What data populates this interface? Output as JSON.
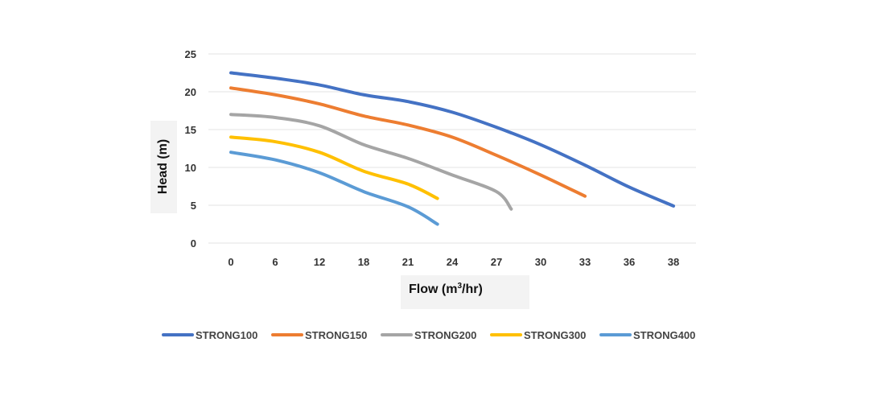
{
  "chart_data": {
    "type": "line",
    "xlabel": "Flow (m",
    "xlabel_sup": "3",
    "xlabel_tail": "/hr)",
    "ylabel": "Head (m)",
    "x_ticks": [
      "0",
      "6",
      "12",
      "18",
      "21",
      "24",
      "27",
      "30",
      "33",
      "36",
      "38"
    ],
    "y_ticks": [
      "0",
      "5",
      "10",
      "15",
      "20",
      "25"
    ],
    "ylim": [
      0,
      25
    ],
    "grid": "horizontal",
    "legend_position": "bottom",
    "series": [
      {
        "name": "STRONG100",
        "color": "#4472c4",
        "points": [
          [
            0,
            22.5
          ],
          [
            6,
            21.8
          ],
          [
            12,
            20.9
          ],
          [
            18,
            19.6
          ],
          [
            21,
            18.7
          ],
          [
            24,
            17.3
          ],
          [
            27,
            15.3
          ],
          [
            30,
            13.0
          ],
          [
            33,
            10.3
          ],
          [
            36,
            7.4
          ],
          [
            38,
            4.9
          ]
        ]
      },
      {
        "name": "STRONG150",
        "color": "#ed7d31",
        "points": [
          [
            0,
            20.5
          ],
          [
            6,
            19.6
          ],
          [
            12,
            18.4
          ],
          [
            18,
            16.8
          ],
          [
            21,
            15.6
          ],
          [
            24,
            14.0
          ],
          [
            27,
            11.6
          ],
          [
            30,
            9.0
          ],
          [
            33,
            6.2
          ]
        ]
      },
      {
        "name": "STRONG200",
        "color": "#a5a5a5",
        "points": [
          [
            0,
            17.0
          ],
          [
            6,
            16.6
          ],
          [
            12,
            15.5
          ],
          [
            18,
            13.0
          ],
          [
            21,
            11.2
          ],
          [
            24,
            9.0
          ],
          [
            27,
            6.8
          ],
          [
            28,
            4.5
          ]
        ]
      },
      {
        "name": "STRONG300",
        "color": "#ffc000",
        "points": [
          [
            0,
            14.0
          ],
          [
            6,
            13.4
          ],
          [
            12,
            12.0
          ],
          [
            18,
            9.5
          ],
          [
            21,
            7.8
          ],
          [
            23,
            5.9
          ]
        ]
      },
      {
        "name": "STRONG400",
        "color": "#5b9bd5",
        "points": [
          [
            0,
            12.0
          ],
          [
            6,
            11.0
          ],
          [
            12,
            9.3
          ],
          [
            18,
            6.8
          ],
          [
            21,
            4.8
          ],
          [
            23,
            2.5
          ]
        ]
      }
    ]
  }
}
